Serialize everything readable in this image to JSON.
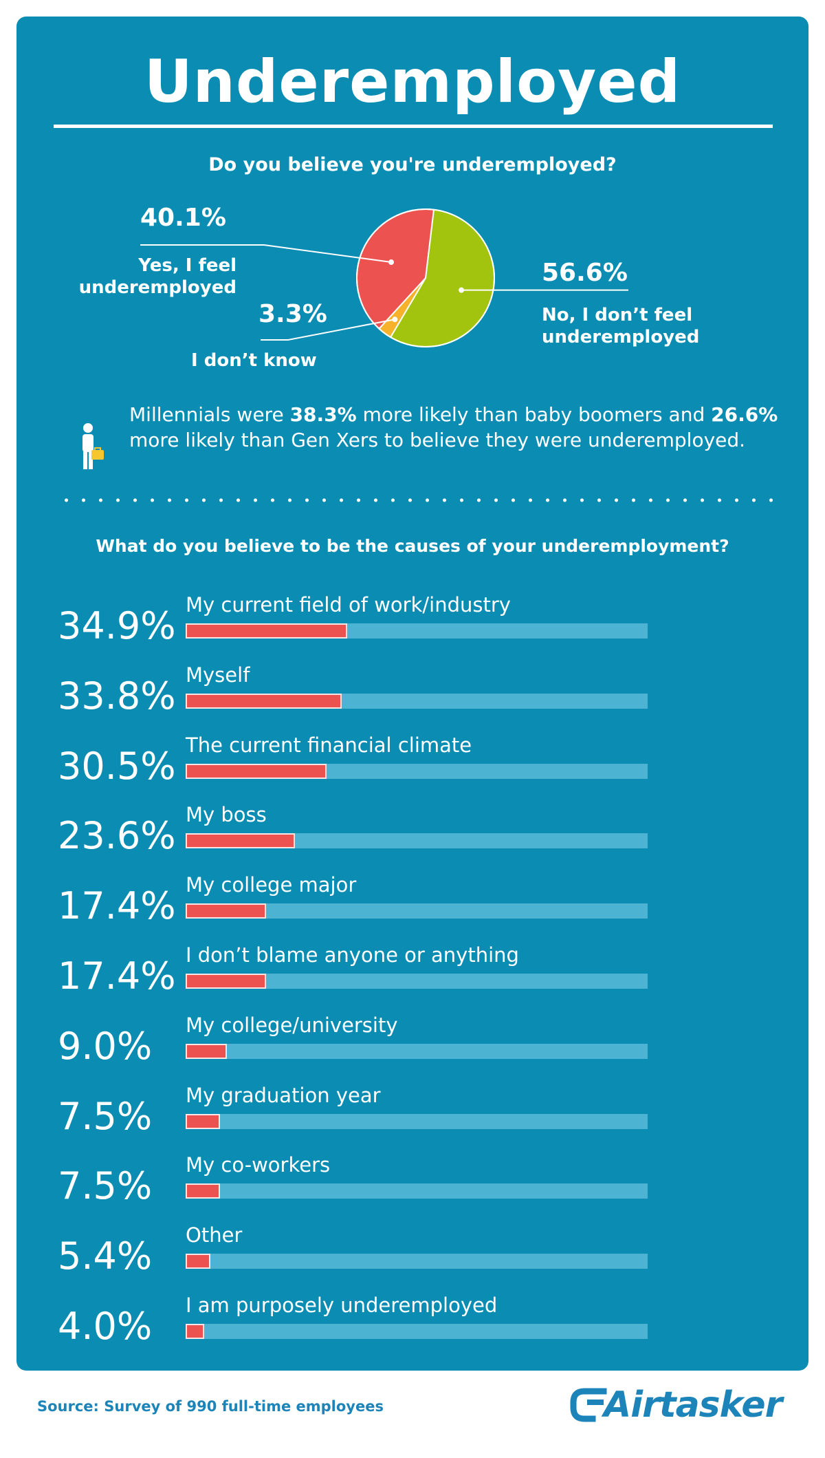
{
  "title": "Underemployed",
  "pie": {
    "question": "Do you believe you're underemployed?",
    "slices": [
      {
        "pct": "40.1%",
        "label_line1": "Yes, I feel",
        "label_line2": "underemployed",
        "color": "#ec5350"
      },
      {
        "pct": "56.6%",
        "label_line1": "No, I don’t feel",
        "label_line2": "underemployed",
        "color": "#a3c40f"
      },
      {
        "pct": "3.3%",
        "label_line1": "I don’t  know",
        "label_line2": "",
        "color": "#f7b22c"
      }
    ]
  },
  "note": {
    "icon": "person-with-briefcase-icon",
    "part1": "Millennials were ",
    "bold1": "38.3%",
    "part2": " more likely than baby boomers and ",
    "bold2": "26.6%",
    "part3": " more likely than Gen Xers to believe they were underemployed."
  },
  "bars": {
    "question": "What do you believe to be the causes of your underemployment?",
    "colors": {
      "fill": "#ec5350",
      "track": "#4db3d3",
      "background": "#0b8db3"
    }
  },
  "chart_data": [
    {
      "type": "pie",
      "title": "Do you believe you're underemployed?",
      "categories": [
        "Yes, I feel underemployed",
        "No, I don’t feel underemployed",
        "I don’t  know"
      ],
      "values": [
        40.1,
        56.6,
        3.3
      ],
      "unit": "%"
    },
    {
      "type": "bar",
      "orientation": "horizontal",
      "title": "What do you believe to be the causes of your underemployment?",
      "categories": [
        "My current field of work/industry",
        "Myself",
        "The current financial climate",
        "My boss",
        "My college major",
        "I don’t blame anyone or anything",
        "My college/university",
        "My graduation year",
        "My co-workers",
        "Other",
        "I am purposely underemployed"
      ],
      "values": [
        34.9,
        33.8,
        30.5,
        23.6,
        17.4,
        17.4,
        9.0,
        7.5,
        7.5,
        5.4,
        4.0
      ],
      "value_labels": [
        "34.9%",
        "33.8%",
        "30.5%",
        "23.6%",
        "17.4%",
        "17.4%",
        "9.0%",
        "7.5%",
        "7.5%",
        "5.4%",
        "4.0%"
      ],
      "xlim": [
        0,
        100
      ],
      "unit": "%"
    }
  ],
  "footer": {
    "source": "Source: Survey of 990 full-time employees",
    "brand": "Airtasker",
    "brand_icon": "airtasker-logo-icon"
  }
}
